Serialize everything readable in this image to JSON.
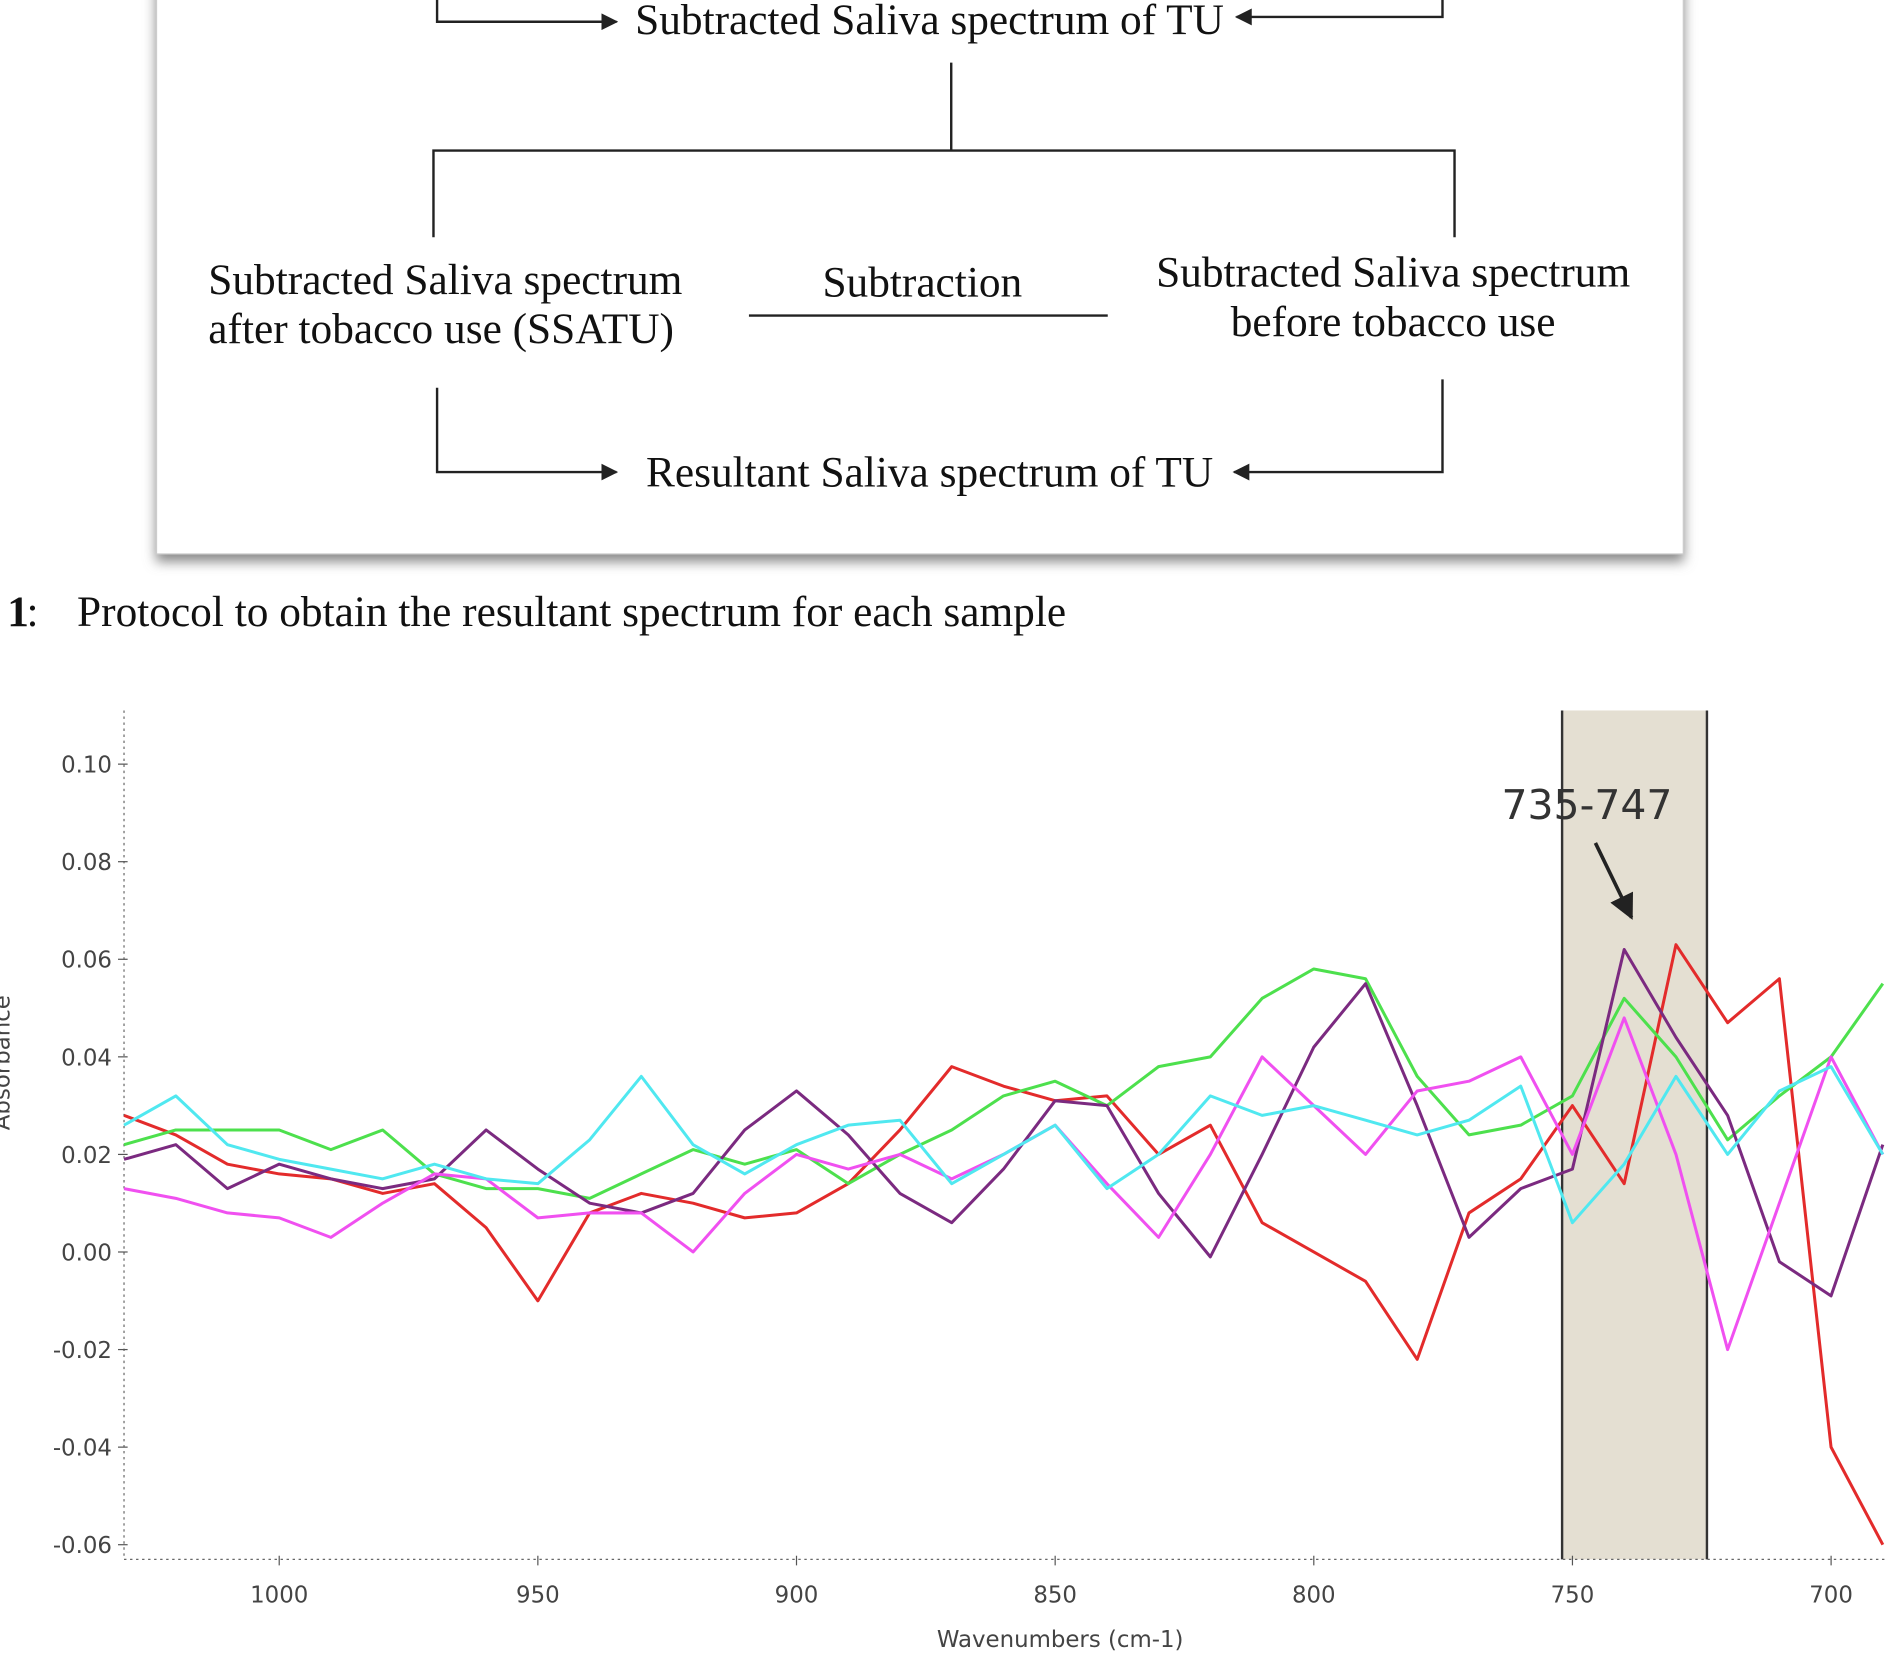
{
  "diagram": {
    "top_result": "Subtracted Saliva spectrum of TU",
    "left_box": [
      "Subtracted Saliva spectrum",
      "after tobacco use (SSATU)"
    ],
    "operation": "Subtraction",
    "right_box": [
      "Subtracted Saliva spectrum",
      "before tobacco use"
    ],
    "bottom_result": "Resultant Saliva spectrum of TU"
  },
  "caption": {
    "number": "1",
    "separator": ":",
    "text": "Protocol to obtain the resultant spectrum for each sample"
  },
  "chart_data": {
    "type": "line",
    "xlabel": "Wavenumbers (cm-1)",
    "ylabel": "Absorbance",
    "annotation": "735-747",
    "highlight": [
      752,
      724
    ],
    "xlim": [
      1030,
      689
    ],
    "ylim": [
      -0.063,
      0.111
    ],
    "xticks": [
      1000,
      950,
      900,
      850,
      800,
      750,
      700
    ],
    "yticks": [
      {
        "value": 0.1,
        "label": "0.10"
      },
      {
        "value": 0.08,
        "label": "0.08"
      },
      {
        "value": 0.06,
        "label": "0.06"
      },
      {
        "value": 0.04,
        "label": "0.04"
      },
      {
        "value": 0.02,
        "label": "0.02"
      },
      {
        "value": 0,
        "label": "0.00"
      },
      {
        "value": -0.02,
        "label": "-0.02"
      },
      {
        "value": -0.04,
        "label": "-0.04"
      },
      {
        "value": -0.06,
        "label": "-0.06"
      }
    ],
    "x": [
      1030,
      1020,
      1010,
      1000,
      990,
      980,
      970,
      960,
      950,
      940,
      930,
      920,
      910,
      900,
      890,
      880,
      870,
      860,
      850,
      840,
      830,
      820,
      810,
      800,
      790,
      780,
      770,
      760,
      750,
      740,
      730,
      720,
      710,
      700,
      690
    ],
    "series": [
      {
        "color": "#e32b2b",
        "values": [
          0.028,
          0.024,
          0.018,
          0.016,
          0.015,
          0.012,
          0.014,
          0.005,
          -0.01,
          0.008,
          0.012,
          0.01,
          0.007,
          0.008,
          0.014,
          0.025,
          0.038,
          0.034,
          0.031,
          0.032,
          0.02,
          0.026,
          0.006,
          0.0,
          -0.006,
          -0.022,
          0.008,
          0.015,
          0.03,
          0.014,
          0.063,
          0.047,
          0.056,
          -0.04,
          -0.06
        ]
      },
      {
        "color": "#4de04d",
        "values": [
          0.022,
          0.025,
          0.025,
          0.025,
          0.021,
          0.025,
          0.016,
          0.013,
          0.013,
          0.011,
          0.016,
          0.021,
          0.018,
          0.021,
          0.014,
          0.02,
          0.025,
          0.032,
          0.035,
          0.03,
          0.038,
          0.04,
          0.052,
          0.058,
          0.056,
          0.036,
          0.024,
          0.026,
          0.032,
          0.052,
          0.04,
          0.023,
          0.032,
          0.04,
          0.055
        ]
      },
      {
        "color": "#7b2a80",
        "values": [
          0.019,
          0.022,
          0.013,
          0.018,
          0.015,
          0.013,
          0.015,
          0.025,
          0.017,
          0.01,
          0.008,
          0.012,
          0.025,
          0.033,
          0.024,
          0.012,
          0.006,
          0.017,
          0.031,
          0.03,
          0.012,
          -0.001,
          0.02,
          0.042,
          0.055,
          0.03,
          0.003,
          0.013,
          0.017,
          0.062,
          0.044,
          0.028,
          -0.002,
          -0.009,
          0.022
        ]
      },
      {
        "color": "#f050f0",
        "values": [
          0.013,
          0.011,
          0.008,
          0.007,
          0.003,
          0.01,
          0.016,
          0.015,
          0.007,
          0.008,
          0.008,
          0.0,
          0.012,
          0.02,
          0.017,
          0.02,
          0.015,
          0.02,
          0.026,
          0.014,
          0.003,
          0.02,
          0.04,
          0.03,
          0.02,
          0.033,
          0.035,
          0.04,
          0.02,
          0.048,
          0.02,
          -0.02,
          0.01,
          0.04,
          0.02
        ]
      },
      {
        "color": "#50e8f0",
        "values": [
          0.026,
          0.032,
          0.022,
          0.019,
          0.017,
          0.015,
          0.018,
          0.015,
          0.014,
          0.023,
          0.036,
          0.022,
          0.016,
          0.022,
          0.026,
          0.027,
          0.014,
          0.02,
          0.026,
          0.013,
          0.02,
          0.032,
          0.028,
          0.03,
          0.027,
          0.024,
          0.027,
          0.034,
          0.006,
          0.018,
          0.036,
          0.02,
          0.033,
          0.038,
          0.02
        ]
      }
    ]
  }
}
